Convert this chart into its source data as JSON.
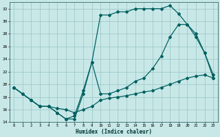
{
  "xlabel": "Humidex (Indice chaleur)",
  "bg_color": "#c8e8e8",
  "grid_color": "#a0c8c8",
  "line_color": "#006060",
  "xlim": [
    -0.5,
    23.5
  ],
  "ylim": [
    14,
    33
  ],
  "xticks": [
    0,
    1,
    2,
    3,
    4,
    5,
    6,
    7,
    8,
    9,
    10,
    11,
    12,
    13,
    14,
    15,
    16,
    17,
    18,
    19,
    20,
    21,
    22,
    23
  ],
  "yticks": [
    14,
    16,
    18,
    20,
    22,
    24,
    26,
    28,
    30,
    32
  ],
  "curve1_x": [
    0,
    1,
    2,
    3,
    4,
    5,
    6,
    7,
    8,
    9,
    10,
    11,
    12,
    13,
    14,
    15,
    16,
    17,
    18,
    19,
    20,
    21,
    22,
    23
  ],
  "curve1_y": [
    19.5,
    18.5,
    17.5,
    16.5,
    16.5,
    15.5,
    14.5,
    14.5,
    18.5,
    23.5,
    31.0,
    31.0,
    31.5,
    31.5,
    32.0,
    32.0,
    32.0,
    32.0,
    32.5,
    31.2,
    29.5,
    27.5,
    25.0,
    21.5
  ],
  "curve2_x": [
    0,
    2,
    3,
    4,
    5,
    6,
    7,
    8,
    9,
    10,
    11,
    12,
    13,
    14,
    15,
    16,
    17,
    18,
    19,
    20,
    21,
    22,
    23
  ],
  "curve2_y": [
    19.5,
    17.5,
    16.5,
    16.5,
    16.2,
    16.0,
    15.5,
    16.0,
    16.5,
    17.5,
    17.8,
    18.0,
    18.2,
    18.5,
    18.8,
    19.0,
    19.5,
    20.0,
    20.5,
    21.0,
    21.3,
    21.5,
    21.0
  ],
  "curve3_x": [
    0,
    1,
    2,
    3,
    4,
    5,
    6,
    7,
    8,
    9,
    10,
    11,
    12,
    13,
    14,
    15,
    16,
    17,
    18,
    19,
    20,
    21,
    22,
    23
  ],
  "curve3_y": [
    19.5,
    18.5,
    17.5,
    16.5,
    16.5,
    15.5,
    14.5,
    15.0,
    19.0,
    23.5,
    18.5,
    18.5,
    19.0,
    19.5,
    20.5,
    21.0,
    22.5,
    24.5,
    27.5,
    29.5,
    29.5,
    28.0,
    25.0,
    21.0
  ]
}
